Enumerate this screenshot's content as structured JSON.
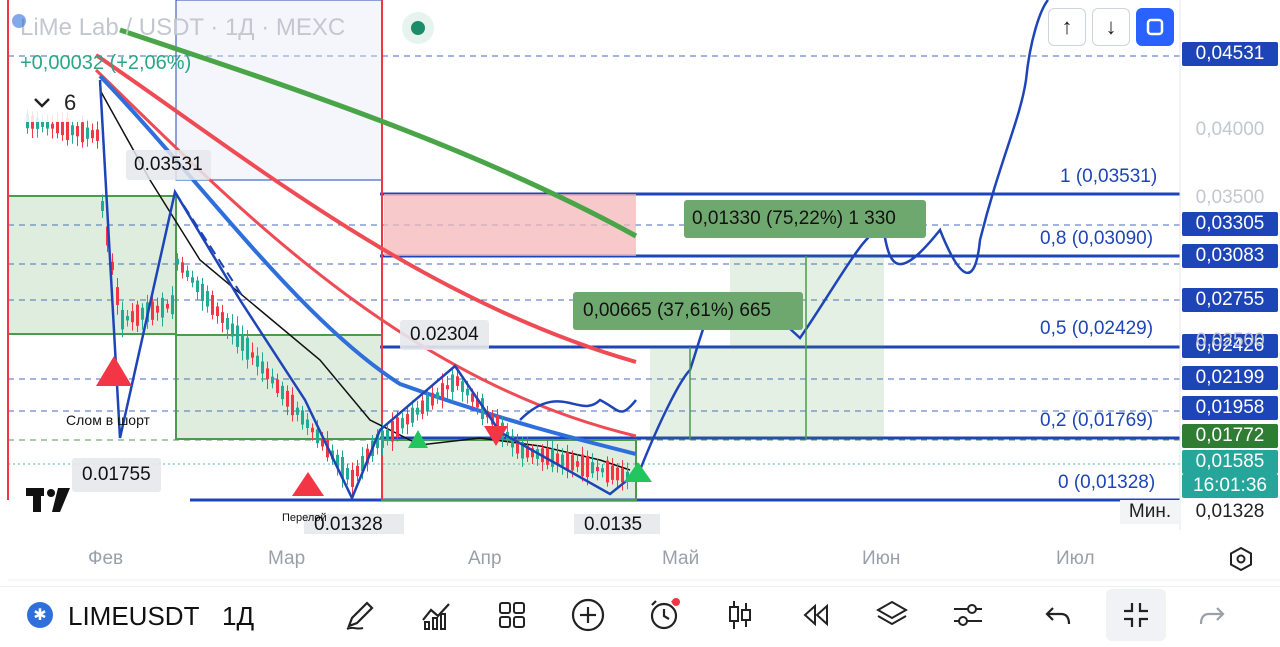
{
  "header": {
    "symbol_title": "LiMe Lab / USDT · 1Д · MEXC",
    "change": "+0,00032 (+2,06%)",
    "indicator_count": "6"
  },
  "top_buttons": {
    "up_arrow": "↑",
    "down_arrow": "↓"
  },
  "price_axis": {
    "labels": [
      {
        "text": "0,04531",
        "style": "blue"
      },
      {
        "text": "0,04000",
        "style": "plain"
      },
      {
        "text": "0,03500",
        "style": "plain"
      },
      {
        "text": "0,03305",
        "style": "blue"
      },
      {
        "text": "0,03083",
        "style": "blue"
      },
      {
        "text": "0,02755",
        "style": "blue"
      },
      {
        "text": "0,02426",
        "style": "blue"
      },
      {
        "text": "0,02199",
        "style": "blue"
      },
      {
        "text": "0,01958",
        "style": "blue"
      },
      {
        "text": "0,01772",
        "style": "green"
      },
      {
        "text": "0,01585",
        "style": "teal"
      },
      {
        "text": "16:01:36",
        "style": "teal"
      },
      {
        "text": "0,01328",
        "style": "white"
      }
    ],
    "min_label": "Мин.",
    "partial_label": "0,02500"
  },
  "fib_levels": [
    {
      "label": "1 (0,03531)"
    },
    {
      "label": "0,8 (0,03090)"
    },
    {
      "label": "0,5 (0,02429)"
    },
    {
      "label": "0,2 (0,01769)"
    },
    {
      "label": "0 (0,01328)"
    }
  ],
  "annotations": {
    "high_label": "0.03531",
    "mid_high_label": "0.02304",
    "low_label_1": "0.01755",
    "low_label_2": "0.01328",
    "low_label_3": "0.0135",
    "break_short": "Слом в шорт",
    "overflow": "Перелой",
    "target_1": "0,00665 (37,61%) 665",
    "target_2": "0,01330 (75,22%) 1 330"
  },
  "time_axis": [
    "Фев",
    "Мар",
    "Апр",
    "Май",
    "Июн",
    "Июл"
  ],
  "toolbar": {
    "symbol": "LIMEUSDT",
    "interval": "1Д",
    "icons": [
      "pen-icon",
      "chart-types-icon",
      "grid-icon",
      "plus-circle-icon",
      "alarm-icon",
      "candles-icon",
      "rewind-icon",
      "layers-icon",
      "sliders-icon",
      "undo-icon",
      "collapse-icon",
      "redo-icon"
    ]
  },
  "colors": {
    "blue_accent": "#1e45b8",
    "green_zone": "#4c9a4c",
    "red_zone": "#f4b7b9",
    "teal": "#26a69a",
    "live_green": "#2e7d32"
  }
}
